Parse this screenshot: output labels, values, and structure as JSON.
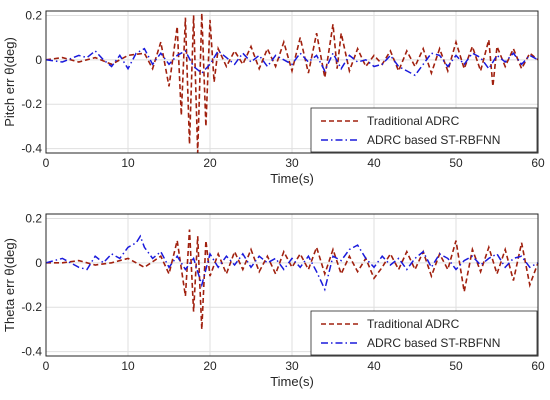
{
  "chart_data": [
    {
      "type": "line",
      "ylabel": "Pitch err θ(deg)",
      "xlabel": "Time(s)",
      "xlim": [
        0,
        60
      ],
      "ylim": [
        -0.42,
        0.22
      ],
      "xticks": [
        "0",
        "10",
        "20",
        "30",
        "40",
        "50",
        "60"
      ],
      "yticks": [
        "-0.4",
        "-0.2",
        "0",
        "0.2"
      ],
      "ytick_values": [
        -0.4,
        -0.2,
        0,
        0.2
      ],
      "grid": true,
      "legend_position": "bottom-right",
      "series": [
        {
          "name": "Traditional ADRC",
          "color": "#a0200e",
          "style": "dashed",
          "x": [
            0,
            2,
            4,
            6,
            8,
            10,
            12,
            13,
            14,
            15,
            16,
            16.5,
            17,
            17.5,
            18,
            18.5,
            19,
            19.5,
            20,
            20.5,
            21,
            22,
            23,
            24,
            25,
            26,
            27,
            28,
            29,
            30,
            31,
            32,
            33,
            34,
            35,
            35.5,
            36,
            37,
            38,
            39,
            40,
            41,
            42,
            43,
            44,
            45,
            46,
            47,
            48,
            49,
            50,
            51,
            52,
            53,
            54,
            54.5,
            55,
            56,
            57,
            58,
            59,
            60
          ],
          "y": [
            0,
            0.01,
            -0.01,
            0.01,
            -0.02,
            0.02,
            0.03,
            -0.04,
            0.08,
            -0.12,
            0.15,
            -0.25,
            0.19,
            -0.38,
            0.2,
            -0.42,
            0.21,
            -0.3,
            0.18,
            -0.1,
            0.05,
            -0.03,
            0.04,
            -0.02,
            0.06,
            -0.04,
            0.05,
            -0.03,
            0.08,
            -0.05,
            0.1,
            -0.06,
            0.12,
            -0.08,
            0.16,
            -0.04,
            0.12,
            -0.05,
            0.05,
            -0.03,
            0.02,
            -0.02,
            0.04,
            -0.05,
            0.04,
            -0.03,
            0.05,
            -0.06,
            0.05,
            -0.05,
            0.08,
            -0.04,
            0.06,
            -0.05,
            0.09,
            -0.12,
            0.06,
            -0.03,
            0.05,
            -0.04,
            0.03,
            0.0
          ]
        },
        {
          "name": "ADRC based ST-RBFNN",
          "color": "#1a1adc",
          "style": "dashdot",
          "x": [
            0,
            2,
            4,
            5,
            6,
            7,
            8,
            9,
            10,
            11,
            12,
            13,
            14,
            15,
            16,
            17,
            18,
            19,
            20,
            21,
            22,
            23,
            24,
            25,
            26,
            27,
            28,
            29,
            30,
            31,
            32,
            33,
            34,
            35,
            36,
            37,
            38,
            39,
            40,
            41,
            42,
            43,
            44,
            45,
            46,
            47,
            48,
            49,
            50,
            51,
            52,
            53,
            54,
            55,
            56,
            57,
            58,
            59,
            60
          ],
          "y": [
            0,
            -0.01,
            0.02,
            0.01,
            0.04,
            0.0,
            -0.03,
            0.02,
            -0.04,
            0.03,
            0.05,
            -0.02,
            0.03,
            -0.02,
            0.02,
            0.04,
            -0.03,
            -0.06,
            -0.02,
            0.04,
            0.01,
            -0.02,
            0.03,
            -0.01,
            0.02,
            -0.03,
            0.02,
            0.0,
            -0.02,
            0.03,
            -0.01,
            0.02,
            -0.05,
            0.03,
            -0.04,
            0.02,
            -0.01,
            0.0,
            -0.03,
            -0.02,
            0.02,
            -0.03,
            -0.05,
            -0.07,
            -0.02,
            0.03,
            0.02,
            -0.03,
            0.02,
            -0.02,
            0.03,
            0.01,
            -0.04,
            0.02,
            -0.01,
            0.03,
            -0.02,
            0.02,
            0.0
          ]
        }
      ]
    },
    {
      "type": "line",
      "ylabel": "Theta err θ(deg)",
      "xlabel": "Time(s)",
      "xlim": [
        0,
        60
      ],
      "ylim": [
        -0.42,
        0.22
      ],
      "xticks": [
        "0",
        "10",
        "20",
        "30",
        "40",
        "50",
        "60"
      ],
      "yticks": [
        "-0.4",
        "-0.2",
        "0",
        "0.2"
      ],
      "ytick_values": [
        -0.4,
        -0.2,
        0,
        0.2
      ],
      "grid": true,
      "legend_position": "bottom-right",
      "series": [
        {
          "name": "Traditional ADRC",
          "color": "#a0200e",
          "style": "dashed",
          "x": [
            0,
            2,
            4,
            6,
            8,
            10,
            12,
            14,
            15,
            16,
            17,
            17.5,
            18,
            18.5,
            19,
            19.5,
            20,
            21,
            22,
            23,
            24,
            25,
            26,
            27,
            28,
            29,
            30,
            31,
            32,
            33,
            34,
            35,
            36,
            37,
            38,
            39,
            40,
            41,
            42,
            43,
            44,
            45,
            46,
            47,
            48,
            49,
            50,
            51,
            52,
            53,
            54,
            55,
            56,
            57,
            58,
            59,
            60
          ],
          "y": [
            0,
            0.0,
            0.01,
            -0.01,
            0.0,
            0.02,
            -0.02,
            0.03,
            -0.05,
            0.1,
            -0.15,
            0.15,
            -0.22,
            0.12,
            -0.3,
            0.1,
            -0.06,
            0.04,
            -0.05,
            0.05,
            -0.03,
            0.06,
            -0.04,
            0.03,
            -0.05,
            0.05,
            -0.02,
            0.04,
            -0.03,
            0.07,
            -0.05,
            0.06,
            -0.05,
            0.03,
            -0.04,
            0.02,
            -0.07,
            -0.02,
            0.04,
            -0.03,
            0.05,
            -0.03,
            0.05,
            -0.06,
            0.04,
            -0.03,
            0.1,
            -0.13,
            0.06,
            -0.04,
            0.07,
            -0.05,
            0.06,
            -0.08,
            0.09,
            -0.1,
            0.0
          ]
        },
        {
          "name": "ADRC based ST-RBFNN",
          "color": "#1a1adc",
          "style": "dashdot",
          "x": [
            0,
            2,
            4,
            5,
            6,
            7,
            8,
            9,
            10,
            11,
            11.5,
            12,
            13,
            14,
            15,
            16,
            17,
            18,
            19,
            20,
            21,
            22,
            23,
            24,
            25,
            26,
            27,
            28,
            29,
            30,
            31,
            32,
            33,
            34,
            35,
            36,
            37,
            38,
            39,
            40,
            41,
            42,
            43,
            44,
            45,
            46,
            47,
            48,
            49,
            50,
            51,
            52,
            53,
            54,
            55,
            56,
            57,
            58,
            59,
            60
          ],
          "y": [
            0,
            0.02,
            -0.02,
            -0.03,
            0.03,
            0.0,
            0.04,
            0.02,
            0.07,
            0.09,
            0.12,
            0.07,
            0.02,
            0.05,
            -0.02,
            0.03,
            -0.03,
            0.02,
            -0.1,
            0.04,
            -0.02,
            0.03,
            -0.01,
            0.04,
            -0.02,
            0.03,
            0.0,
            0.02,
            -0.03,
            0.02,
            -0.02,
            0.03,
            -0.04,
            -0.12,
            0.03,
            0.01,
            0.06,
            0.08,
            0.02,
            -0.02,
            0.03,
            -0.01,
            0.02,
            -0.03,
            0.02,
            0.05,
            -0.02,
            0.04,
            0.02,
            -0.03,
            0.01,
            0.03,
            -0.01,
            0.02,
            0.04,
            -0.02,
            0.02,
            0.03,
            -0.02,
            0.0
          ]
        }
      ]
    }
  ]
}
